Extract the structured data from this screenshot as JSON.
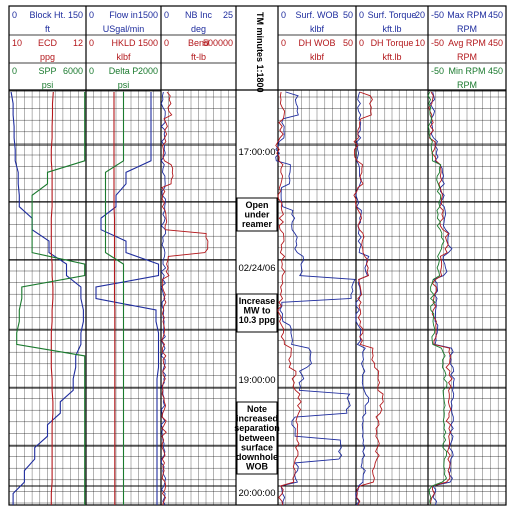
{
  "colors": {
    "blue": "#1f2d9e",
    "red": "#b3181c",
    "green": "#1a7a2e",
    "grid": "#000000"
  },
  "tracks": [
    {
      "id": "track1",
      "curves": [
        {
          "min": "0",
          "name": "Block Ht.",
          "max": "150",
          "unit": "ft",
          "color": "blue"
        },
        {
          "min": "10",
          "name": "ECD",
          "max": "12",
          "unit": "ppg",
          "color": "red"
        },
        {
          "min": "0",
          "name": "SPP",
          "max": "6000",
          "unit": "psi",
          "color": "green"
        }
      ]
    },
    {
      "id": "track2",
      "curves": [
        {
          "min": "0",
          "name": "Flow in",
          "max": "1500",
          "unit": "USgal/min",
          "color": "blue"
        },
        {
          "min": "0",
          "name": "HKLD",
          "max": "1500",
          "unit": "klbf",
          "color": "red"
        },
        {
          "min": "0",
          "name": "Delta P",
          "max": "2000",
          "unit": "psi",
          "color": "green"
        }
      ]
    },
    {
      "id": "track3",
      "curves": [
        {
          "min": "0",
          "name": "NB Inc",
          "max": "25",
          "unit": "deg",
          "color": "blue"
        },
        {
          "min": "0",
          "name": "Bend",
          "max": "500000",
          "unit": "ft-lb",
          "color": "red"
        }
      ]
    },
    {
      "id": "track5",
      "curves": [
        {
          "min": "0",
          "name": "Surf. WOB",
          "max": "50",
          "unit": "klbf",
          "color": "blue"
        },
        {
          "min": "0",
          "name": "DH WOB",
          "max": "50",
          "unit": "klbf",
          "color": "red"
        }
      ]
    },
    {
      "id": "track6",
      "curves": [
        {
          "min": "0",
          "name": "Surf. Torque",
          "max": "20",
          "unit": "kft.lb",
          "color": "blue"
        },
        {
          "min": "0",
          "name": "DH Torque",
          "max": "10",
          "unit": "kft.lb",
          "color": "red"
        }
      ]
    },
    {
      "id": "track7",
      "curves": [
        {
          "min": "-50",
          "name": "Max RPM",
          "max": "450",
          "unit": "RPM",
          "color": "blue"
        },
        {
          "min": "-50",
          "name": "Avg RPM",
          "max": "450",
          "unit": "RPM",
          "color": "red"
        },
        {
          "min": "-50",
          "name": "Min RPM",
          "max": "450",
          "unit": "RPM",
          "color": "green"
        }
      ]
    }
  ],
  "depth_track": {
    "title": "TM minutes 1:1800",
    "time_labels": [
      "17:00:00",
      "02/24/06",
      "19:00:00",
      "20:00:00"
    ],
    "notes": [
      [
        "Open",
        "under",
        "reamer"
      ],
      [
        "Increase",
        "MW to",
        "10.3 ppg"
      ],
      [
        "Note",
        "increased",
        "separation",
        "between",
        "surface",
        "downhole",
        "WOB"
      ]
    ]
  },
  "chart_data": {
    "type": "line",
    "title": "",
    "y_axis": "time (TM minutes 1:1800)",
    "y_tick_labels": [
      "17:00:00",
      "02/24/06",
      "19:00:00",
      "20:00:00"
    ],
    "series": [
      {
        "name": "Block Ht.",
        "track": "track1",
        "unit": "ft",
        "range": [
          0,
          150
        ],
        "color": "blue",
        "values": [
          4,
          8,
          10,
          12,
          18,
          20,
          45,
          78,
          112,
          140,
          145,
          140,
          130,
          125,
          100,
          75,
          50,
          30,
          8
        ]
      },
      {
        "name": "ECD",
        "track": "track1",
        "unit": "ppg",
        "range": [
          10,
          12
        ],
        "color": "red",
        "values": [
          11.15,
          11.13,
          11.12,
          11.1,
          11.12,
          11.12,
          11.1,
          11.1,
          11.12,
          11.14,
          11.12,
          11.1,
          11.1,
          11.12,
          11.14,
          11.12,
          11.12,
          11.12,
          11.1
        ]
      },
      {
        "name": "SPP",
        "track": "track1",
        "unit": "psi",
        "range": [
          0,
          6000
        ],
        "color": "green",
        "values": [
          5900,
          5900,
          5900,
          5900,
          3000,
          1800,
          1800,
          1800,
          5900,
          1000,
          800,
          600,
          5900,
          5900,
          5900,
          5900,
          5900,
          5900,
          5900
        ]
      },
      {
        "name": "Flow in",
        "track": "track2",
        "unit": "USgal/min",
        "range": [
          0,
          1500
        ],
        "color": "blue",
        "values": [
          1300,
          1300,
          1300,
          1300,
          800,
          600,
          300,
          800,
          1450,
          200,
          1400,
          1450,
          1450,
          1420,
          1420,
          1420,
          1420,
          1420,
          1420
        ]
      },
      {
        "name": "HKLD",
        "track": "track2",
        "unit": "klbf",
        "range": [
          0,
          1500
        ],
        "color": "red",
        "values": [
          560,
          560,
          560,
          560,
          560,
          560,
          570,
          570,
          570,
          570,
          575,
          575,
          575,
          575,
          575,
          575,
          575,
          575,
          575
        ]
      },
      {
        "name": "Delta P",
        "track": "track2",
        "unit": "psi",
        "range": [
          0,
          2000
        ],
        "color": "green",
        "values": [
          1000,
          1000,
          1000,
          1000,
          520,
          520,
          520,
          520,
          1000,
          1000,
          1000,
          1000,
          1000,
          1000,
          1000,
          1000,
          1000,
          1000,
          1000
        ]
      },
      {
        "name": "NB Inc",
        "track": "track3",
        "unit": "deg",
        "range": [
          0,
          25
        ],
        "color": "blue",
        "values": [
          0.8,
          0.8,
          0.8,
          0.8,
          0.8,
          0.8,
          0.8,
          0.8,
          0.8,
          0.8,
          0.8,
          0.8,
          0.8,
          0.8,
          0.8,
          0.8,
          0.8,
          0.8,
          0.8
        ]
      },
      {
        "name": "Bend",
        "track": "track3",
        "unit": "ft-lb",
        "range": [
          0,
          500000
        ],
        "color": "red",
        "values": [
          40000,
          60000,
          30000,
          20000,
          80000,
          20000,
          40000,
          300000,
          40000,
          20000,
          20000,
          20000,
          20000,
          20000,
          20000,
          20000,
          20000,
          20000,
          20000
        ]
      },
      {
        "name": "Surf. WOB",
        "track": "track5",
        "unit": "klbf",
        "range": [
          0,
          50
        ],
        "color": "blue",
        "values": [
          5,
          12,
          3,
          0,
          8,
          3,
          10,
          12,
          15,
          48,
          2,
          8,
          20,
          15,
          45,
          10,
          40,
          12,
          3
        ]
      },
      {
        "name": "DH WOB",
        "track": "track5",
        "unit": "klbf",
        "range": [
          0,
          50
        ],
        "color": "red",
        "values": [
          2,
          3,
          2,
          0,
          2,
          1,
          2,
          3,
          3,
          2,
          1,
          3,
          8,
          10,
          14,
          12,
          12,
          10,
          2
        ]
      },
      {
        "name": "Surf. Torque",
        "track": "track6",
        "unit": "kft.lb",
        "range": [
          0,
          20
        ],
        "color": "blue",
        "values": [
          1,
          1,
          1,
          0.5,
          1,
          0.5,
          1,
          1,
          3,
          1,
          0.5,
          1,
          2,
          2,
          3,
          2,
          2,
          2,
          0.5
        ]
      },
      {
        "name": "DH Torque",
        "track": "track6",
        "unit": "kft.lb",
        "range": [
          0,
          10
        ],
        "color": "red",
        "values": [
          0.5,
          2,
          0.5,
          0,
          0.8,
          0,
          0.5,
          0.8,
          1.5,
          0.5,
          0.5,
          0.8,
          2.5,
          3,
          3.5,
          3,
          3,
          2.5,
          0.3
        ]
      },
      {
        "name": "Max RPM",
        "track": "track7",
        "unit": "RPM",
        "range": [
          -50,
          450
        ],
        "color": "blue",
        "values": [
          -20,
          -20,
          -20,
          0,
          40,
          40,
          60,
          90,
          60,
          0,
          0,
          0,
          100,
          110,
          110,
          100,
          100,
          100,
          -10
        ]
      },
      {
        "name": "Avg RPM",
        "track": "track7",
        "unit": "RPM",
        "range": [
          -50,
          450
        ],
        "color": "red",
        "values": [
          -30,
          -30,
          -30,
          -10,
          30,
          30,
          40,
          70,
          40,
          -10,
          -10,
          -10,
          80,
          90,
          90,
          80,
          80,
          80,
          -20
        ]
      },
      {
        "name": "Min RPM",
        "track": "track7",
        "unit": "RPM",
        "range": [
          -50,
          450
        ],
        "color": "green",
        "values": [
          -40,
          -40,
          -40,
          -20,
          20,
          20,
          20,
          40,
          20,
          -20,
          -20,
          -20,
          50,
          60,
          60,
          55,
          55,
          55,
          -30
        ]
      }
    ]
  }
}
